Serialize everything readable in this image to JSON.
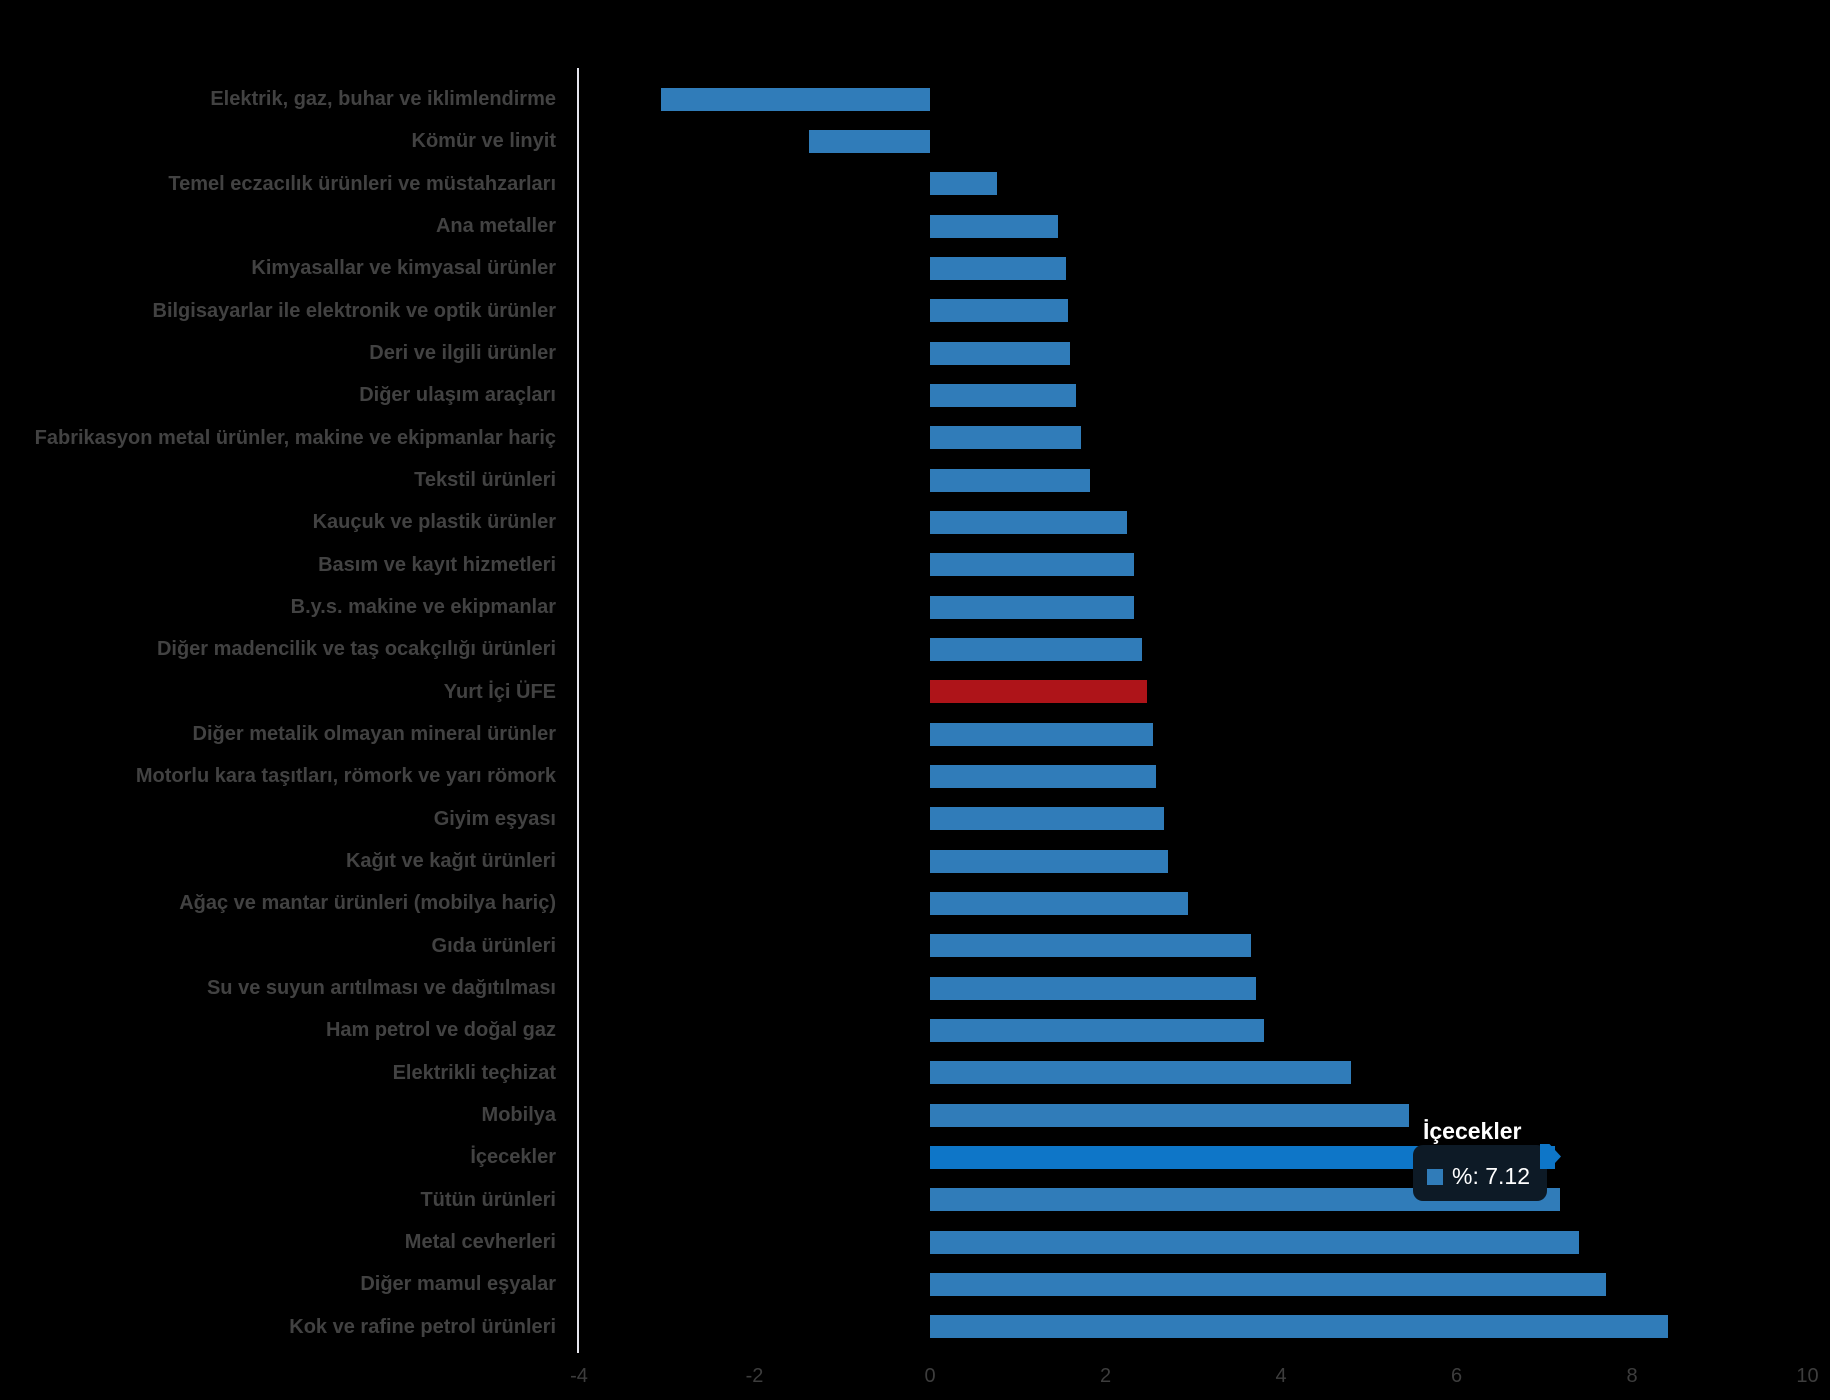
{
  "colors": {
    "background": "#000000",
    "bar_blue": "#307CB9",
    "bar_highlight_blue": "#0E76C8",
    "bar_red": "#AE1419",
    "axis_line": "#E6E6EE",
    "label_gray": "#424242",
    "tick_gray": "#3D3D3D",
    "tooltip_bg": "#0D1A26",
    "tooltip_text": "#FFFFFF"
  },
  "tooltip": {
    "title": "İçecekler",
    "value_text": "%: 7.12",
    "swatch_color": "#307CB9"
  },
  "chart_data": {
    "type": "bar",
    "orientation": "horizontal",
    "title": "",
    "xlabel": "",
    "ylabel": "",
    "xlim": [
      -4,
      10
    ],
    "x_ticks": [
      "-4",
      "-2",
      "0",
      "2",
      "4",
      "6",
      "8",
      "10"
    ],
    "grid": false,
    "legend": false,
    "highlighted_category": "İçecekler",
    "emphasis_category": "Yurt İçi ÜFE",
    "categories": [
      "Elektrik, gaz, buhar ve iklimlendirme",
      "Kömür ve linyit",
      "Temel eczacılık ürünleri ve müstahzarları",
      "Ana metaller",
      "Kimyasallar ve kimyasal ürünler",
      "Bilgisayarlar ile elektronik ve optik ürünler",
      "Deri ve ilgili ürünler",
      "Diğer ulaşım araçları",
      "Fabrikasyon metal ürünler, makine ve ekipmanlar hariç",
      "Tekstil ürünleri",
      "Kauçuk ve plastik ürünler",
      "Basım ve kayıt hizmetleri",
      "B.y.s. makine ve ekipmanlar",
      "Diğer madencilik ve taş ocakçılığı ürünleri",
      "Yurt İçi ÜFE",
      "Diğer metalik olmayan mineral ürünler",
      "Motorlu kara taşıtları, römork ve yarı römork",
      "Giyim eşyası",
      "Kağıt ve kağıt ürünleri",
      "Ağaç ve mantar ürünleri (mobilya hariç)",
      "Gıda ürünleri",
      "Su ve suyun arıtılması ve dağıtılması",
      "Ham petrol ve doğal gaz",
      "Elektrikli teçhizat",
      "Mobilya",
      "İçecekler",
      "Tütün ürünleri",
      "Metal cevherleri",
      "Diğer mamul eşyalar",
      "Kok ve rafine petrol ürünleri"
    ],
    "values": [
      -3.06,
      -1.38,
      0.76,
      1.46,
      1.55,
      1.57,
      1.59,
      1.66,
      1.72,
      1.82,
      2.24,
      2.32,
      2.33,
      2.42,
      2.47,
      2.54,
      2.57,
      2.67,
      2.71,
      2.94,
      3.66,
      3.71,
      3.81,
      4.8,
      5.46,
      7.12,
      7.18,
      7.4,
      7.7,
      8.41
    ]
  }
}
